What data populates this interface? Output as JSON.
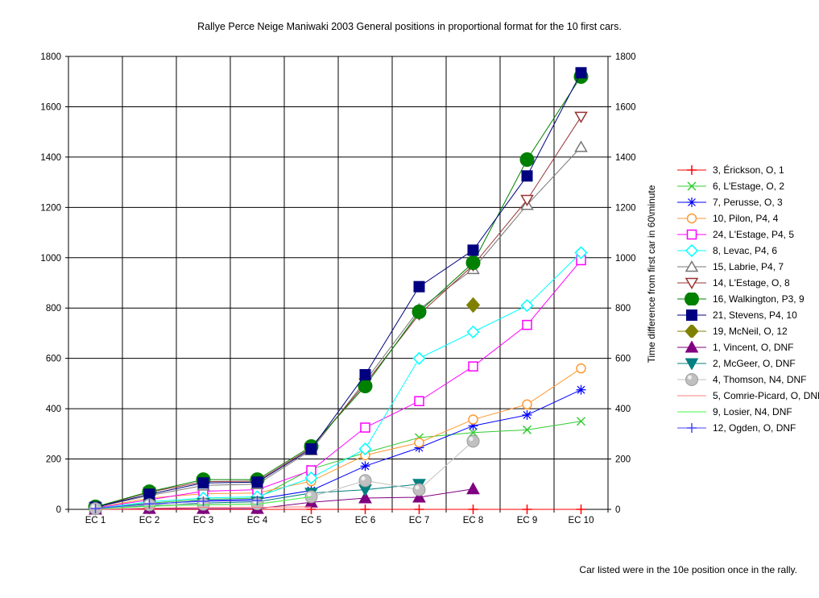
{
  "page": {
    "title": "Rallye Perce Neige Maniwaki 2003  General positions in proportional format for the 10 first cars.",
    "right_axis_label": "Time difference from first car in 60\\minute",
    "footer": "Car listed were in the 10e position once in the rally."
  },
  "chart_data": {
    "type": "line",
    "title": "Rallye Perce Neige Maniwaki 2003  General positions in proportional format for the 10 first cars.",
    "xlabel": "",
    "ylabel": "Time difference from first car in 60\\minute",
    "categories": [
      "EC 1",
      "EC 2",
      "EC 3",
      "EC 4",
      "EC 5",
      "EC 6",
      "EC 7",
      "EC 8",
      "EC 9",
      "EC 10"
    ],
    "ylim": [
      0,
      1800
    ],
    "ytick_step": 200,
    "grid": true,
    "legend_position": "right",
    "series": [
      {
        "name": "erickson",
        "label": "3, Érickson, O, 1",
        "color": "#FF0000",
        "marker": "plus",
        "values": [
          0,
          0,
          0,
          0,
          0,
          0,
          0,
          0,
          0,
          0
        ]
      },
      {
        "name": "lestage6",
        "label": "6, L'Estage, O, 2",
        "color": "#33CC33",
        "marker": "x",
        "values": [
          5,
          25,
          40,
          45,
          160,
          225,
          285,
          305,
          316,
          350
        ]
      },
      {
        "name": "perusse",
        "label": "7, Perusse, O, 3",
        "color": "#0000FF",
        "marker": "star",
        "values": [
          3,
          20,
          35,
          40,
          75,
          172,
          245,
          332,
          375,
          475
        ]
      },
      {
        "name": "pilon",
        "label": "10, Pilon, P4, 4",
        "color": "#FF9933",
        "marker": "circle-open",
        "values": [
          5,
          45,
          62,
          65,
          112,
          215,
          265,
          357,
          417,
          560
        ]
      },
      {
        "name": "lestage24",
        "label": "24, L'Estage, P4, 5",
        "color": "#FF00FF",
        "marker": "square-open",
        "values": [
          5,
          38,
          72,
          78,
          155,
          325,
          430,
          568,
          733,
          990
        ]
      },
      {
        "name": "levac",
        "label": "8, Levac, P4, 6",
        "color": "#00FFFF",
        "marker": "diamond-open",
        "values": [
          3,
          30,
          45,
          50,
          125,
          240,
          600,
          705,
          810,
          1020
        ]
      },
      {
        "name": "labrie",
        "label": "15, Labrie, P4, 7",
        "color": "#777777",
        "marker": "triangle-open",
        "values": [
          8,
          55,
          95,
          100,
          235,
          510,
          795,
          955,
          1210,
          1440
        ]
      },
      {
        "name": "lestage14",
        "label": "14, L'Estage, O, 8",
        "color": "#993333",
        "marker": "triangle-down-open",
        "values": [
          8,
          68,
          110,
          112,
          245,
          500,
          775,
          970,
          1230,
          1560
        ]
      },
      {
        "name": "walkington",
        "label": "16, Walkington, P3, 9",
        "color": "#008000",
        "marker": "circle",
        "values": [
          10,
          70,
          118,
          118,
          250,
          490,
          785,
          980,
          1390,
          1720
        ]
      },
      {
        "name": "stevens",
        "label": "21, Stevens, P4, 10",
        "color": "#000080",
        "marker": "square",
        "values": [
          8,
          60,
          105,
          108,
          240,
          535,
          885,
          1030,
          1325,
          1735
        ]
      },
      {
        "name": "mcneil",
        "label": "19, McNeil, O, 12",
        "color": "#808000",
        "marker": "diamond",
        "values": [
          null,
          null,
          null,
          null,
          null,
          null,
          null,
          812,
          null,
          null
        ]
      },
      {
        "name": "vincent",
        "label": "1, Vincent, O, DNF",
        "color": "#800080",
        "marker": "triangle",
        "values": [
          0,
          3,
          3,
          3,
          28,
          45,
          48,
          81,
          null,
          null
        ]
      },
      {
        "name": "mcgeer",
        "label": "2, McGeer, O, DNF",
        "color": "#008080",
        "marker": "triangle-down",
        "values": [
          3,
          15,
          25,
          30,
          65,
          78,
          100,
          null,
          null,
          null
        ]
      },
      {
        "name": "thomson",
        "label": "4, Thomson, N4, DNF",
        "color": "#C0C0C0",
        "marker": "sphere",
        "values": [
          3,
          18,
          20,
          22,
          50,
          114,
          78,
          271,
          null,
          null
        ]
      },
      {
        "name": "comriepicard",
        "label": "5, Comrie-Picard, O, DNF",
        "color": "#FF8080",
        "marker": "line",
        "values": [
          0,
          5,
          8,
          8,
          10,
          null,
          null,
          null,
          null,
          null
        ]
      },
      {
        "name": "losier",
        "label": "9, Losier, N4, DNF",
        "color": "#44FF44",
        "marker": "line",
        "values": [
          2,
          12,
          18,
          20,
          50,
          null,
          null,
          null,
          null,
          null
        ]
      },
      {
        "name": "ogden",
        "label": "12, Ogden, O, DNF",
        "color": "#4444FF",
        "marker": "plus",
        "values": [
          3,
          22,
          32,
          35,
          null,
          null,
          null,
          null,
          null,
          null
        ]
      }
    ]
  }
}
